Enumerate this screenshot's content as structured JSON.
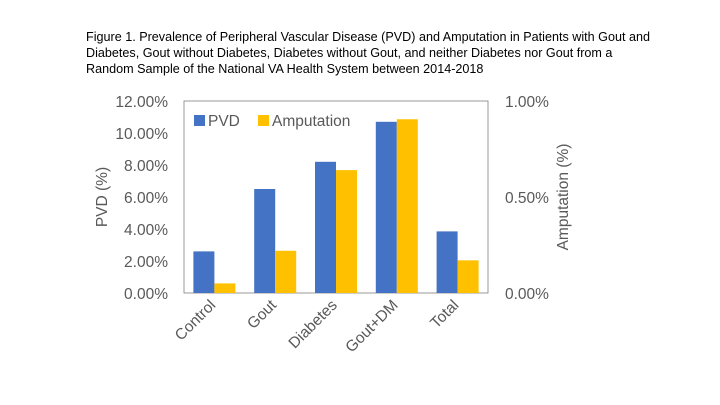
{
  "figure": {
    "caption_lines": [
      "Figure 1. Prevalence of Peripheral Vascular Disease (PVD) and Amputation in Patients with Gout and",
      "Diabetes, Gout without Diabetes, Diabetes without Gout, and neither Diabetes nor Gout from a",
      "Random Sample of the National VA Health System between 2014-2018"
    ]
  },
  "chart_data": {
    "type": "bar",
    "title": "Figure 1. Prevalence of Peripheral Vascular Disease (PVD) and Amputation in Patients with Gout and Diabetes, Gout without Diabetes, Diabetes without Gout, and neither Diabetes nor Gout from a Random Sample of the National VA Health System between 2014-2018",
    "categories": [
      "Control",
      "Gout",
      "Diabetes",
      "Gout+DM",
      "Total"
    ],
    "series": [
      {
        "name": "PVD",
        "axis": "left",
        "color": "#4472C4",
        "values": [
          2.6,
          6.5,
          8.2,
          10.7,
          3.85
        ]
      },
      {
        "name": "Amputation",
        "axis": "right",
        "color": "#FFC000",
        "values": [
          0.05,
          0.22,
          0.64,
          0.905,
          0.17
        ]
      }
    ],
    "ylabel": "PVD (%)",
    "y2label": "Amputation (%)",
    "ylim": [
      0,
      12
    ],
    "y2lim": [
      0,
      1
    ],
    "yticks": [
      0,
      2,
      4,
      6,
      8,
      10,
      12
    ],
    "yticklabels": [
      "0.00%",
      "2.00%",
      "4.00%",
      "6.00%",
      "8.00%",
      "10.00%",
      "12.00%"
    ],
    "y2ticks": [
      0,
      0.5,
      1
    ],
    "y2ticklabels": [
      "0.00%",
      "0.50%",
      "1.00%"
    ],
    "grid": false,
    "legend": "top-left"
  }
}
